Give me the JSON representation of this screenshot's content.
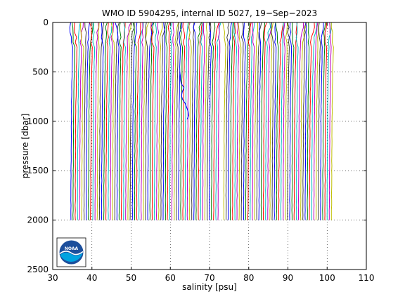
{
  "chart_data": {
    "type": "line",
    "title": "WMO ID 5904295, internal ID 5027, 19−Sep−2023",
    "xlabel": "salinity [psu]",
    "ylabel": "pressure [dbar]",
    "xlim": [
      30,
      110
    ],
    "ylim": [
      0,
      2500
    ],
    "y_reversed": true,
    "xticks": [
      "30",
      "40",
      "50",
      "60",
      "70",
      "80",
      "90",
      "100",
      "110"
    ],
    "yticks": [
      "0",
      "500",
      "1000",
      "1500",
      "2000",
      "2500"
    ],
    "grid": true,
    "grid_style": "dotted",
    "legend": "none",
    "series_description": "waterfall of salinity profiles, each successive profile offset in salinity",
    "profile_count": 118,
    "first_profile_salinity_range": [
      34.4,
      35.4
    ],
    "last_profile_salinity_offset": 65.6,
    "profile_pressure_range": [
      0,
      2000
    ],
    "gap_between_profiles_near": 68,
    "colors": [
      "#0000ff",
      "#008000",
      "#ff0000",
      "#00bfbf",
      "#bf00bf",
      "#bfbf00",
      "#404040"
    ],
    "highlight_profile": {
      "color": "#0000ff",
      "salinity_min": 61.5,
      "salinity_max": 64.5,
      "pressure_range": [
        500,
        1000
      ]
    }
  },
  "logo": {
    "label": "NOAA",
    "icon": "noaa-logo-icon",
    "colors": {
      "sky": "#1c4f9c",
      "sea": "#00a3e0",
      "wave": "#ffffff"
    }
  },
  "colors": {
    "axis": "#000000",
    "grid": "#000000",
    "background": "#ffffff"
  }
}
